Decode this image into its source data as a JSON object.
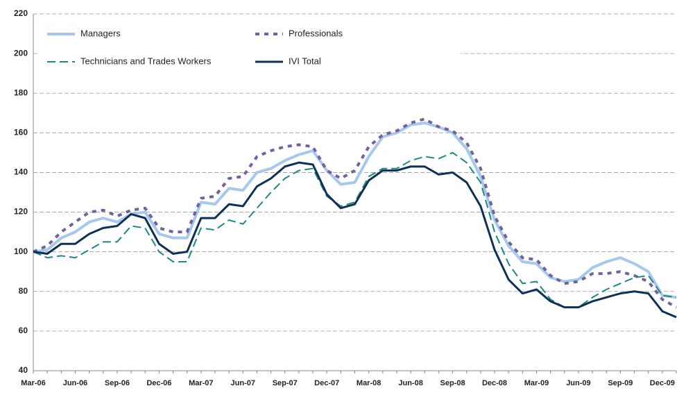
{
  "chart_data": {
    "type": "line",
    "categories": [
      "Mar-06",
      null,
      null,
      "Jun-06",
      null,
      null,
      "Sep-06",
      null,
      null,
      "Dec-06",
      null,
      null,
      "Mar-07",
      null,
      null,
      "Jun-07",
      null,
      null,
      "Sep-07",
      null,
      null,
      "Dec-07",
      null,
      null,
      "Mar-08",
      null,
      null,
      "Jun-08",
      null,
      null,
      "Sep-08",
      null,
      null,
      "Dec-08",
      null,
      null,
      "Mar-09",
      null,
      null,
      "Jun-09",
      null,
      null,
      "Sep-09",
      null,
      null,
      "Dec-09",
      null
    ],
    "series": [
      {
        "name": "Managers",
        "color": "#a6c8ec",
        "style": "solid",
        "values": [
          100,
          101,
          107,
          110,
          115,
          117,
          115,
          119,
          120,
          109,
          107,
          107,
          125,
          124,
          132,
          131,
          140,
          142,
          146,
          149,
          151,
          141,
          134,
          135,
          148,
          158,
          160,
          164,
          165,
          163,
          160,
          152,
          138,
          116,
          103,
          95,
          94,
          87,
          85,
          86,
          92,
          95,
          97,
          94,
          90,
          78,
          77
        ]
      },
      {
        "name": "Professionals",
        "color": "#7062a0",
        "style": "dotted",
        "values": [
          100,
          103,
          110,
          115,
          120,
          121,
          118,
          121,
          122,
          112,
          110,
          110,
          127,
          128,
          137,
          138,
          148,
          151,
          153,
          154,
          153,
          141,
          137,
          141,
          153,
          159,
          161,
          165,
          167,
          163,
          161,
          155,
          142,
          118,
          105,
          97,
          96,
          88,
          84,
          85,
          89,
          89,
          90,
          88,
          85,
          76,
          72
        ]
      },
      {
        "name": "Technicians and Trades Workers",
        "color": "#1a8a80",
        "style": "dashed",
        "values": [
          100,
          97,
          98,
          97,
          101,
          105,
          105,
          113,
          112,
          100,
          95,
          95,
          112,
          111,
          116,
          114,
          122,
          130,
          137,
          141,
          142,
          128,
          123,
          125,
          138,
          142,
          142,
          146,
          148,
          147,
          150,
          145,
          135,
          110,
          94,
          84,
          85,
          76,
          72,
          72,
          77,
          81,
          84,
          87,
          88,
          78,
          77
        ]
      },
      {
        "name": "IVI Total",
        "color": "#0e2f56",
        "style": "solid",
        "values": [
          100,
          99,
          104,
          104,
          109,
          112,
          113,
          119,
          117,
          104,
          99,
          100,
          117,
          117,
          124,
          123,
          133,
          137,
          143,
          145,
          144,
          129,
          122,
          124,
          136,
          141,
          141,
          143,
          143,
          139,
          140,
          135,
          123,
          101,
          86,
          79,
          81,
          75,
          72,
          72,
          75,
          77,
          79,
          80,
          79,
          70,
          67
        ]
      }
    ],
    "ylim": [
      40,
      220
    ],
    "yticks": [
      40,
      60,
      80,
      100,
      120,
      140,
      160,
      180,
      200,
      220
    ],
    "grid": true,
    "legend": "top-left"
  }
}
